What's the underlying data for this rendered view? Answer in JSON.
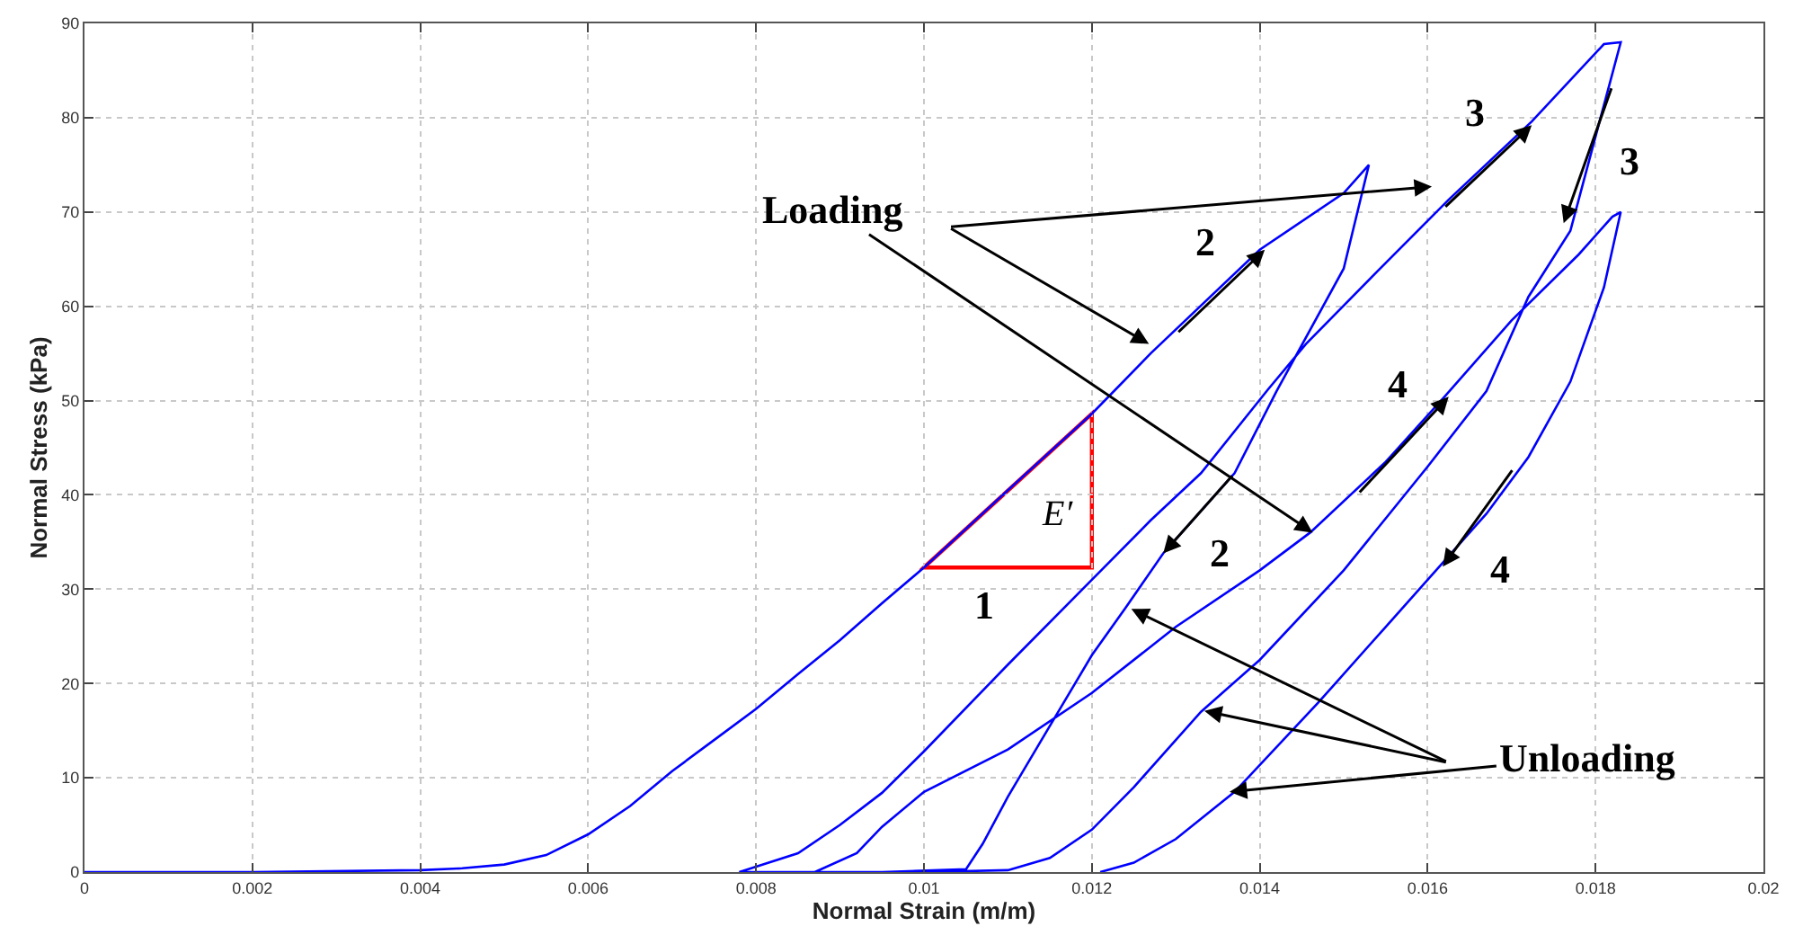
{
  "chart_data": {
    "type": "line",
    "xlabel": "Normal Strain (m/m)",
    "ylabel": "Normal Stress (kPa)",
    "xlim": [
      0,
      0.02
    ],
    "xticks": [
      0,
      0.002,
      0.004,
      0.006,
      0.008,
      0.01,
      0.012,
      0.014,
      0.016,
      0.018,
      0.02
    ],
    "ylim": [
      0,
      90
    ],
    "yticks": [
      0,
      10,
      20,
      30,
      40,
      50,
      60,
      70,
      80,
      90
    ],
    "grid": true,
    "marker": "none",
    "line_style": "solid",
    "series": [
      {
        "color": "#0000ff",
        "x": [
          0,
          0.002,
          0.004,
          0.0045,
          0.005,
          0.0055,
          0.006,
          0.0065,
          0.007,
          0.0075,
          0.008,
          0.0085,
          0.009,
          0.0095,
          0.01,
          0.011,
          0.012,
          0.0127,
          0.014,
          0.015,
          0.0153,
          0.015,
          0.0142,
          0.0137,
          0.01285,
          0.0124,
          0.012,
          0.0115,
          0.011,
          0.0107,
          0.0105,
          0.0095,
          0.0078,
          0.0085,
          0.009,
          0.0095,
          0.01,
          0.011,
          0.012,
          0.0127,
          0.0133,
          0.0141,
          0.01455,
          0.0154,
          0.01625,
          0.01724,
          0.0181,
          0.0183,
          0.0177,
          0.0172,
          0.0167,
          0.016,
          0.015,
          0.014,
          0.0133,
          0.0125,
          0.012,
          0.0115,
          0.011,
          0.01,
          0.0087,
          0.0092,
          0.0095,
          0.01,
          0.011,
          0.012,
          0.013,
          0.014,
          0.0146,
          0.0155,
          0.0162,
          0.017,
          0.0178,
          0.0182,
          0.0183,
          0.0181,
          0.0177,
          0.0172,
          0.0167,
          0.0162,
          0.0155,
          0.0147,
          0.0137,
          0.013,
          0.0125,
          0.0121
        ],
        "values": [
          0,
          0,
          0.2,
          0.4,
          0.8,
          1.8,
          4,
          7,
          10.7,
          14,
          17.3,
          21,
          24.6,
          28.5,
          32.3,
          40.5,
          48.6,
          55,
          66,
          72,
          75,
          64,
          51,
          42.3,
          33.8,
          28,
          23,
          15.5,
          8,
          3,
          0.3,
          0,
          0,
          2,
          5,
          8.4,
          12.8,
          22,
          31,
          37.3,
          42.3,
          51.2,
          56,
          63.7,
          71.3,
          79.6,
          87.8,
          88,
          68,
          61,
          51,
          43,
          32,
          22.5,
          17,
          9,
          4.5,
          1.5,
          0.2,
          0,
          0,
          2,
          4.8,
          8.5,
          13,
          19,
          26,
          32,
          36,
          43.5,
          50.4,
          58.5,
          65.5,
          69.5,
          70,
          62,
          52,
          44,
          38,
          33,
          26,
          18,
          8.5,
          3.5,
          1,
          0
        ]
      }
    ],
    "annotations": [
      {
        "text": "Loading",
        "x": 0.01463,
        "y": 36
      },
      {
        "text": "Unloading",
        "x": 0.01364,
        "y": 8.5
      },
      "E′",
      "1",
      "2",
      "2",
      "3",
      "3",
      "4",
      "4"
    ]
  }
}
